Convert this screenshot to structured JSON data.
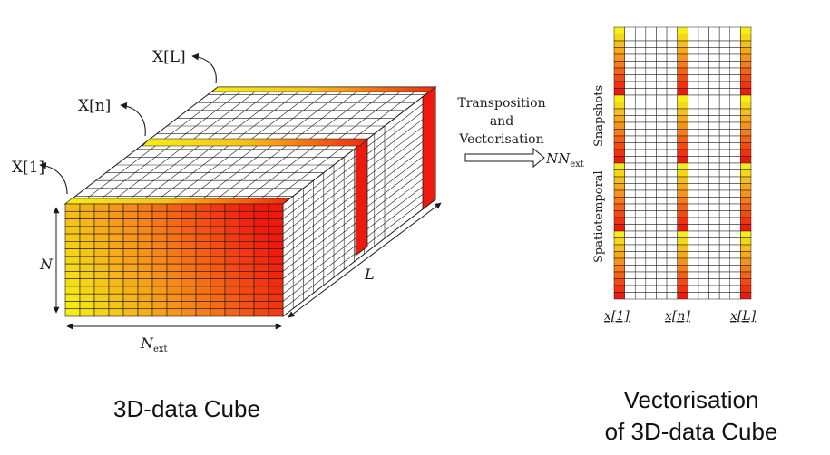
{
  "cube": {
    "rows": 15,
    "cols": 15,
    "slices": 15,
    "slice_labels": {
      "first": "X[1]",
      "middle": "X[n]",
      "last": "X[L]"
    },
    "dim_labels": {
      "height": "N",
      "width": "N",
      "width_sub": "ext",
      "depth": "L"
    },
    "caption": "3D-data Cube"
  },
  "transform": {
    "line1": "Transposition",
    "line2": "and",
    "line3": "Vectorisation",
    "result": "NN",
    "result_sub": "ext"
  },
  "matrix": {
    "rows": 40,
    "cols": 13,
    "highlight_cols": [
      0,
      6,
      12
    ],
    "y_label_1": "Spatiotemporal",
    "y_label_2": "Snapshots",
    "col_labels": [
      "x[1]",
      "x[n]",
      "x[L]"
    ],
    "caption_line1": "Vectorisation",
    "caption_line2": "of 3D-data Cube"
  },
  "colors": {
    "gradient_start": "#f4ee16",
    "gradient_mid": "#f7871a",
    "gradient_end": "#ef1a0e",
    "grid_line": "#1a1a1a"
  }
}
